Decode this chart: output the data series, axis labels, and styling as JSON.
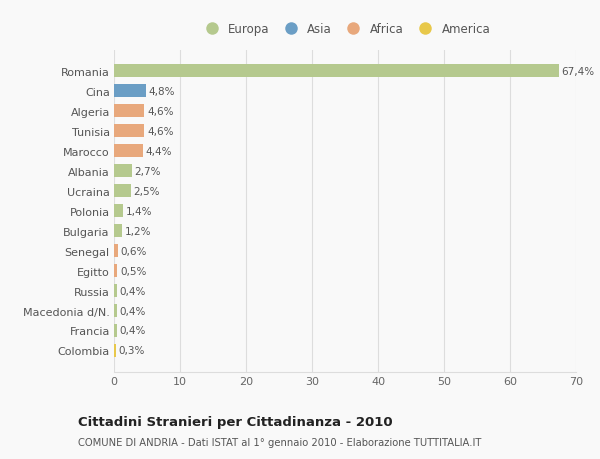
{
  "categories": [
    "Romania",
    "Cina",
    "Algeria",
    "Tunisia",
    "Marocco",
    "Albania",
    "Ucraina",
    "Polonia",
    "Bulgaria",
    "Senegal",
    "Egitto",
    "Russia",
    "Macedonia d/N.",
    "Francia",
    "Colombia"
  ],
  "values": [
    67.4,
    4.8,
    4.6,
    4.6,
    4.4,
    2.7,
    2.5,
    1.4,
    1.2,
    0.6,
    0.5,
    0.4,
    0.4,
    0.4,
    0.3
  ],
  "labels": [
    "67,4%",
    "4,8%",
    "4,6%",
    "4,6%",
    "4,4%",
    "2,7%",
    "2,5%",
    "1,4%",
    "1,2%",
    "0,6%",
    "0,5%",
    "0,4%",
    "0,4%",
    "0,4%",
    "0,3%"
  ],
  "colors": [
    "#b5c98e",
    "#6b9ec5",
    "#e8a87c",
    "#e8a87c",
    "#e8a87c",
    "#b5c98e",
    "#b5c98e",
    "#b5c98e",
    "#b5c98e",
    "#e8a87c",
    "#e8a87c",
    "#b5c98e",
    "#b5c98e",
    "#b5c98e",
    "#e8c84a"
  ],
  "legend_labels": [
    "Europa",
    "Asia",
    "Africa",
    "America"
  ],
  "legend_colors": [
    "#b5c98e",
    "#6b9ec5",
    "#e8a87c",
    "#e8c84a"
  ],
  "xlim": [
    0,
    70
  ],
  "xticks": [
    0,
    10,
    20,
    30,
    40,
    50,
    60,
    70
  ],
  "title": "Cittadini Stranieri per Cittadinanza - 2010",
  "subtitle": "COMUNE DI ANDRIA - Dati ISTAT al 1° gennaio 2010 - Elaborazione TUTTITALIA.IT",
  "bg_color": "#f9f9f9",
  "grid_color": "#dddddd",
  "bar_height": 0.65
}
